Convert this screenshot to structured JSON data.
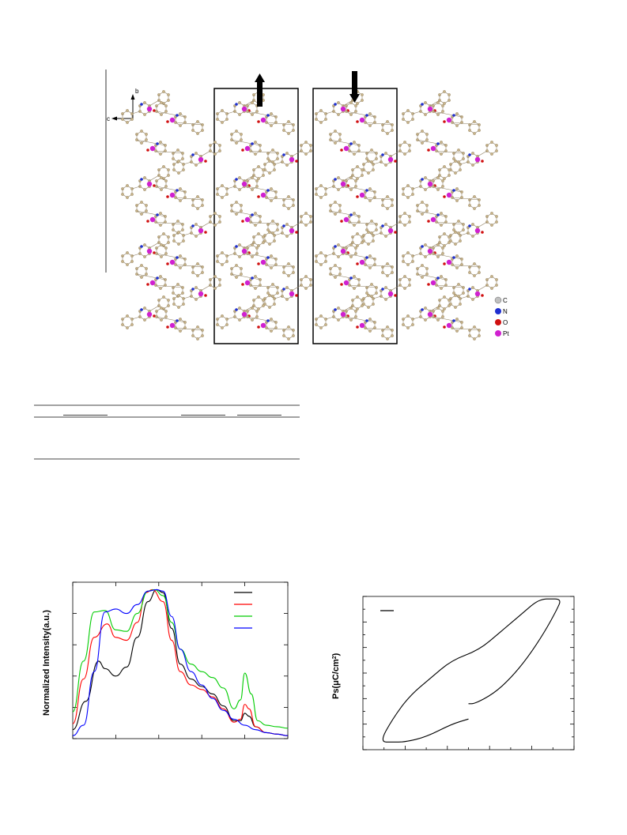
{
  "figure_top": {
    "axis_labels": {
      "b": "b",
      "c": "c"
    },
    "legend": [
      {
        "label": "C",
        "color": "#c0c0c0"
      },
      {
        "label": "N",
        "color": "#1f2fd0"
      },
      {
        "label": "O",
        "color": "#d01010"
      },
      {
        "label": "Pt",
        "color": "#d020d0"
      }
    ],
    "atom_colors": {
      "carbon": "#c8b48a",
      "nitrogen": "#1f2fd0",
      "oxygen": "#d01010",
      "platinum": "#d020d0"
    },
    "arrow_icons": [
      "up-arrow-icon",
      "down-arrow-icon"
    ]
  },
  "chart_data": [
    {
      "type": "line",
      "title": "",
      "xlabel": "",
      "ylabel": "Normalized Intensity(a.u.)",
      "xlim": [
        0,
        10
      ],
      "ylim": [
        0,
        1.05
      ],
      "grid": false,
      "legend_position": "top-right",
      "legend_labels_printed": false,
      "series": [
        {
          "name": "",
          "color": "#000000",
          "x": [
            0,
            0.6,
            1.2,
            1.5,
            2.0,
            2.5,
            3.0,
            3.5,
            3.9,
            4.2,
            4.6,
            5.0,
            5.5,
            6.0,
            6.5,
            7.0,
            7.5,
            7.8,
            8.0,
            8.2,
            8.5,
            9.0,
            9.5,
            10
          ],
          "y": [
            0.06,
            0.25,
            0.52,
            0.47,
            0.42,
            0.48,
            0.68,
            0.92,
            1.0,
            0.98,
            0.74,
            0.5,
            0.4,
            0.35,
            0.3,
            0.22,
            0.12,
            0.12,
            0.17,
            0.15,
            0.08,
            0.04,
            0.03,
            0.02
          ]
        },
        {
          "name": "",
          "color": "#ff0000",
          "x": [
            0,
            0.5,
            1.0,
            1.6,
            2.0,
            2.5,
            3.0,
            3.4,
            3.7,
            4.2,
            4.6,
            5.0,
            5.5,
            6.0,
            6.5,
            7.0,
            7.5,
            7.8,
            8.0,
            8.2,
            8.5,
            9.0,
            9.5,
            10
          ],
          "y": [
            0.1,
            0.4,
            0.68,
            0.77,
            0.68,
            0.66,
            0.78,
            0.98,
            1.0,
            0.92,
            0.66,
            0.45,
            0.36,
            0.33,
            0.28,
            0.2,
            0.11,
            0.13,
            0.23,
            0.2,
            0.08,
            0.04,
            0.03,
            0.02
          ]
        },
        {
          "name": "",
          "color": "#00cc00",
          "x": [
            0,
            0.5,
            1.0,
            1.5,
            2.0,
            2.5,
            3.0,
            3.5,
            3.8,
            4.2,
            4.6,
            5.0,
            5.5,
            6.0,
            6.5,
            7.0,
            7.5,
            7.8,
            8.0,
            8.3,
            8.6,
            9.0,
            9.5,
            10
          ],
          "y": [
            0.18,
            0.52,
            0.85,
            0.86,
            0.73,
            0.72,
            0.84,
            0.99,
            1.0,
            0.96,
            0.78,
            0.6,
            0.5,
            0.45,
            0.41,
            0.34,
            0.2,
            0.26,
            0.44,
            0.3,
            0.12,
            0.09,
            0.08,
            0.07
          ]
        },
        {
          "name": "",
          "color": "#0000ff",
          "x": [
            0,
            0.5,
            1.0,
            1.5,
            2.0,
            2.5,
            3.0,
            3.5,
            3.9,
            4.2,
            4.6,
            5.0,
            5.5,
            6.0,
            6.5,
            7.0,
            7.5,
            8.0,
            8.5,
            9.0,
            9.5,
            10
          ],
          "y": [
            0.02,
            0.09,
            0.45,
            0.85,
            0.87,
            0.84,
            0.9,
            0.99,
            1.0,
            0.99,
            0.82,
            0.6,
            0.45,
            0.36,
            0.27,
            0.19,
            0.13,
            0.09,
            0.06,
            0.04,
            0.03,
            0.02
          ]
        }
      ]
    },
    {
      "type": "line",
      "title": "",
      "xlabel": "",
      "ylabel": "Ps(μC/cm²)",
      "xlim": [
        -5,
        5
      ],
      "ylim": [
        -3,
        3
      ],
      "grid": false,
      "legend_position": "top-left",
      "legend_labels_printed": false,
      "series": [
        {
          "name": "",
          "color": "#000000",
          "x": [
            0.0,
            -0.8,
            -2.0,
            -3.0,
            -3.6,
            -4.2,
            -3.6,
            -2.8,
            -1.8,
            -0.8,
            0.5,
            1.5,
            2.5,
            3.2,
            3.6,
            3.8,
            4.4,
            4.2,
            3.6,
            2.8,
            2.0,
            1.2,
            0.3,
            0.0
          ],
          "y": [
            -1.8,
            -2.0,
            -2.5,
            -2.7,
            -2.7,
            -2.7,
            -1.8,
            -0.9,
            -0.2,
            0.5,
            0.9,
            1.6,
            2.3,
            2.8,
            2.9,
            2.9,
            2.9,
            2.5,
            1.6,
            0.6,
            -0.2,
            -0.8,
            -1.2,
            -1.2
          ]
        }
      ]
    }
  ]
}
